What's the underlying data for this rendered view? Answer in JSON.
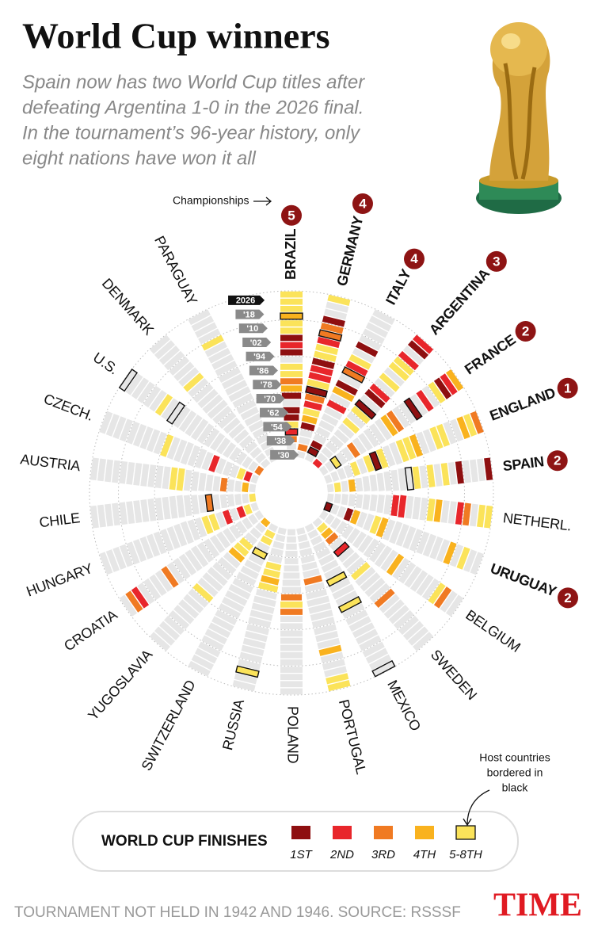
{
  "chart_data": {
    "type": "radial",
    "title": "World Cup winners",
    "subtitle": [
      "Spain now has two World Cup titles after",
      "defeating Argentina 1-0 in the 2026 final.",
      "In the tournament’s 96-year history, only",
      "eight nations have won it all"
    ],
    "championships_label": "Championships",
    "categories": [
      "'30",
      null,
      "'38",
      null,
      "'54",
      null,
      "'62",
      null,
      "'70",
      null,
      "'78",
      null,
      "'86",
      null,
      "'94",
      null,
      "'02",
      null,
      "'10",
      null,
      "'18",
      null,
      "2026"
    ],
    "finishes": {
      "title": "WORLD CUP FINISHES",
      "labels": [
        "1ST",
        "2ND",
        "3RD",
        "4TH",
        "5-8TH"
      ],
      "colors": [
        "#8e0f10",
        "#e8262b",
        "#f07a22",
        "#f9b21e",
        "#fbe35a"
      ]
    },
    "host_note": [
      "Host countries",
      "bordered in",
      "black"
    ],
    "footnote": "TOURNAMENT NOT HELD IN 1942 AND 1946. SOURCE: RSSSF",
    "brand": "TIME",
    "series": [
      {
        "name": "BRAZIL",
        "titles": 5,
        "host": [
          3,
          19
        ],
        "values": [
          null,
          null,
          3,
          2,
          5,
          1,
          1,
          null,
          1,
          4,
          3,
          5,
          5,
          null,
          1,
          2,
          1,
          5,
          5,
          4,
          5,
          5,
          5
        ]
      },
      {
        "name": "GERMANY",
        "titles": 4,
        "host": [
          9,
          17
        ],
        "values": [
          null,
          3,
          null,
          null,
          1,
          4,
          5,
          2,
          3,
          1,
          5,
          2,
          2,
          1,
          5,
          5,
          2,
          3,
          3,
          1,
          null,
          null,
          5
        ]
      },
      {
        "name": "ITALY",
        "titles": 4,
        "host": [
          1,
          13
        ],
        "values": [
          null,
          1,
          1,
          null,
          null,
          null,
          null,
          null,
          2,
          null,
          4,
          1,
          null,
          3,
          2,
          5,
          null,
          1,
          null,
          null,
          null,
          null,
          null
        ]
      },
      {
        "name": "ARGENTINA",
        "titles": 3,
        "host": [
          10
        ],
        "values": [
          2,
          null,
          null,
          null,
          null,
          null,
          null,
          5,
          null,
          5,
          1,
          null,
          1,
          2,
          null,
          5,
          null,
          5,
          5,
          2,
          null,
          1,
          2
        ]
      },
      {
        "name": "FRANCE",
        "titles": 2,
        "host": [
          2,
          15
        ],
        "values": [
          null,
          null,
          5,
          null,
          null,
          3,
          null,
          null,
          null,
          null,
          null,
          4,
          3,
          null,
          null,
          1,
          null,
          2,
          null,
          5,
          1,
          2,
          4
        ]
      },
      {
        "name": "ENGLAND",
        "titles": 1,
        "host": [
          7
        ],
        "values": [
          null,
          null,
          null,
          null,
          5,
          null,
          5,
          1,
          5,
          null,
          null,
          5,
          5,
          4,
          null,
          null,
          5,
          5,
          null,
          null,
          4,
          5,
          3
        ]
      },
      {
        "name": "SPAIN",
        "titles": 2,
        "host": [
          11
        ],
        "values": [
          null,
          5,
          null,
          4,
          null,
          null,
          null,
          null,
          null,
          null,
          null,
          null,
          5,
          null,
          5,
          null,
          5,
          null,
          1,
          null,
          null,
          null,
          1
        ]
      },
      {
        "name": "NETHERL.",
        "values": [
          null,
          null,
          null,
          null,
          null,
          null,
          null,
          null,
          null,
          2,
          2,
          null,
          null,
          null,
          5,
          4,
          null,
          null,
          2,
          3,
          null,
          5,
          5
        ]
      },
      {
        "name": "URUGUAY",
        "titles": 2,
        "host": [
          0
        ],
        "values": [
          1,
          null,
          null,
          1,
          4,
          null,
          null,
          5,
          4,
          null,
          null,
          null,
          null,
          null,
          null,
          null,
          null,
          null,
          4,
          null,
          5,
          null,
          null
        ]
      },
      {
        "name": "BELGIUM",
        "values": [
          null,
          null,
          null,
          null,
          null,
          null,
          null,
          null,
          null,
          null,
          null,
          null,
          4,
          null,
          null,
          null,
          null,
          null,
          null,
          5,
          3,
          null,
          null
        ]
      },
      {
        "name": "SWEDEN",
        "host": [
          5
        ],
        "values": [
          null,
          5,
          4,
          3,
          null,
          2,
          null,
          null,
          null,
          5,
          null,
          null,
          null,
          null,
          3,
          null,
          null,
          null,
          null,
          null,
          null,
          null,
          null
        ]
      },
      {
        "name": "MEXICO",
        "host": [
          8,
          12,
          22
        ],
        "values": [
          null,
          null,
          null,
          null,
          null,
          null,
          null,
          null,
          5,
          null,
          null,
          null,
          5,
          null,
          null,
          null,
          null,
          null,
          null,
          null,
          null,
          null,
          null
        ]
      },
      {
        "name": "PORTUGAL",
        "values": [
          null,
          null,
          null,
          null,
          null,
          null,
          null,
          3,
          null,
          null,
          null,
          null,
          null,
          null,
          null,
          null,
          null,
          4,
          null,
          null,
          null,
          5,
          5
        ]
      },
      {
        "name": "POLAND",
        "values": [
          null,
          null,
          null,
          null,
          null,
          null,
          null,
          null,
          null,
          3,
          5,
          3,
          null,
          null,
          null,
          null,
          null,
          null,
          null,
          null,
          null,
          null,
          null
        ]
      },
      {
        "name": "RUSSIA",
        "host": [
          20
        ],
        "values": [
          null,
          null,
          null,
          null,
          null,
          5,
          5,
          4,
          5,
          null,
          null,
          null,
          null,
          null,
          null,
          null,
          null,
          null,
          null,
          null,
          5,
          null,
          null
        ]
      },
      {
        "name": "SWITZERLAND",
        "host": [
          4
        ],
        "values": [
          null,
          5,
          5,
          null,
          5,
          null,
          null,
          null,
          null,
          null,
          null,
          null,
          null,
          null,
          null,
          null,
          null,
          null,
          null,
          null,
          null,
          null,
          null
        ]
      },
      {
        "name": "YUGOSLAVIA",
        "values": [
          4,
          null,
          null,
          null,
          5,
          5,
          4,
          null,
          null,
          null,
          null,
          null,
          null,
          5,
          null,
          null,
          null,
          null,
          null,
          null,
          null,
          null,
          null
        ]
      },
      {
        "name": "CROATIA",
        "values": [
          null,
          null,
          null,
          null,
          null,
          null,
          null,
          null,
          null,
          null,
          null,
          null,
          null,
          null,
          null,
          3,
          null,
          null,
          null,
          null,
          2,
          3,
          null
        ]
      },
      {
        "name": "HUNGARY",
        "values": [
          null,
          5,
          2,
          null,
          2,
          null,
          5,
          5,
          null,
          null,
          null,
          null,
          null,
          null,
          null,
          null,
          null,
          null,
          null,
          null,
          null,
          null,
          null
        ]
      },
      {
        "name": "CHILE",
        "host": [
          6
        ],
        "values": [
          5,
          null,
          null,
          null,
          null,
          null,
          3,
          null,
          null,
          null,
          null,
          null,
          null,
          null,
          null,
          null,
          null,
          null,
          null,
          null,
          null,
          null,
          null
        ]
      },
      {
        "name": "AUSTRIA",
        "values": [
          null,
          4,
          null,
          null,
          3,
          null,
          null,
          null,
          null,
          null,
          5,
          5,
          null,
          null,
          null,
          null,
          null,
          null,
          null,
          null,
          null,
          null,
          null
        ]
      },
      {
        "name": "CZECH.",
        "values": [
          null,
          2,
          5,
          null,
          null,
          null,
          2,
          null,
          null,
          null,
          null,
          null,
          null,
          5,
          null,
          null,
          null,
          null,
          null,
          null,
          null,
          null,
          null
        ]
      },
      {
        "name": "U.S.",
        "host": [
          14,
          22
        ],
        "values": [
          3,
          null,
          null,
          null,
          null,
          null,
          null,
          null,
          null,
          null,
          null,
          null,
          null,
          null,
          null,
          null,
          5,
          null,
          null,
          null,
          null,
          null,
          null
        ]
      },
      {
        "name": "DENMARK",
        "values": [
          null,
          null,
          null,
          null,
          null,
          null,
          null,
          null,
          null,
          null,
          null,
          null,
          null,
          null,
          null,
          5,
          null,
          null,
          null,
          null,
          null,
          null,
          null
        ]
      },
      {
        "name": "PARAGUAY",
        "values": [
          null,
          null,
          null,
          null,
          null,
          null,
          null,
          null,
          null,
          null,
          null,
          null,
          null,
          null,
          null,
          null,
          null,
          null,
          5,
          null,
          null,
          null,
          null
        ]
      }
    ]
  }
}
